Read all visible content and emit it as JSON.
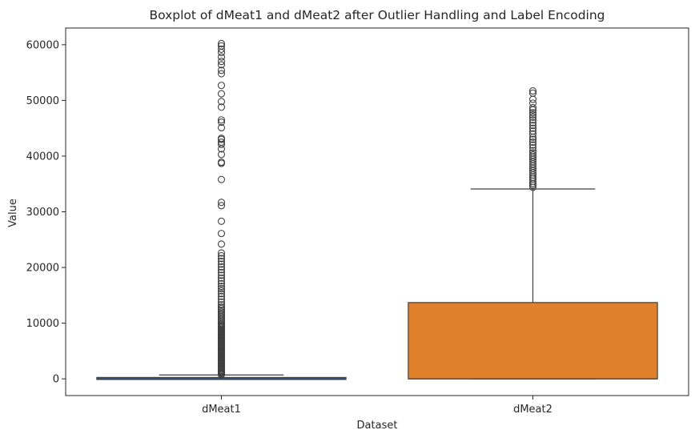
{
  "chart_data": {
    "type": "boxplot",
    "title": "Boxplot of dMeat1 and dMeat2 after Outlier Handling and Label Encoding",
    "xlabel": "Dataset",
    "ylabel": "Value",
    "ylim": [
      -3000,
      63000
    ],
    "yticks": [
      0,
      10000,
      20000,
      30000,
      40000,
      50000,
      60000
    ],
    "yticklabels": [
      "0",
      "10000",
      "20000",
      "30000",
      "40000",
      "50000",
      "60000"
    ],
    "grid": false,
    "categories": [
      "dMeat1",
      "dMeat2"
    ],
    "boxes": [
      {
        "category": "dMeat1",
        "color": "#3a75ae",
        "min": 0,
        "q1": 0,
        "median": 0,
        "q3": 250,
        "max": 700,
        "outliers": [
          760,
          900,
          1050,
          1200,
          1350,
          1500,
          1700,
          1900,
          2100,
          2300,
          2500,
          2700,
          2900,
          3100,
          3300,
          3500,
          3700,
          3900,
          4100,
          4300,
          4500,
          4700,
          4900,
          5100,
          5300,
          5500,
          5700,
          5900,
          6100,
          6300,
          6500,
          6700,
          6900,
          7100,
          7300,
          7500,
          7700,
          7900,
          8100,
          8300,
          8500,
          8700,
          8900,
          9100,
          9300,
          9500,
          9700,
          9900,
          10200,
          10500,
          10800,
          11100,
          11400,
          11700,
          12000,
          12300,
          12600,
          12900,
          13300,
          13800,
          14300,
          14800,
          15300,
          15800,
          16200,
          16600,
          17100,
          17600,
          18100,
          18600,
          19100,
          19600,
          20100,
          20600,
          21100,
          21600,
          22100,
          22600,
          24200,
          26100,
          28300,
          31100,
          31700,
          35800,
          38700,
          38900,
          40300,
          41300,
          42100,
          42500,
          43000,
          43200,
          45100,
          46100,
          46500,
          48800,
          49800,
          51200,
          52700,
          54800,
          55400,
          56400,
          57000,
          57800,
          58600,
          59200,
          59800,
          60200
        ]
      },
      {
        "category": "dMeat2",
        "color": "#e1812c",
        "min": 0,
        "q1": 0,
        "median": 0,
        "q3": 13700,
        "max": 34100,
        "outliers": [
          34400,
          34800,
          35100,
          35500,
          35900,
          36200,
          36600,
          37000,
          37400,
          37800,
          38200,
          38600,
          39000,
          39400,
          39800,
          40200,
          40600,
          41000,
          41500,
          42000,
          42500,
          43000,
          43400,
          44000,
          44500,
          45000,
          45500,
          46000,
          46500,
          47000,
          47400,
          47800,
          48300,
          48700,
          49500,
          50200,
          51300,
          51700
        ]
      }
    ]
  }
}
